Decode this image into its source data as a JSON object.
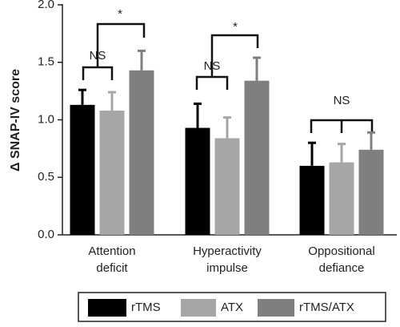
{
  "chart_data": {
    "type": "bar",
    "y_label": "Δ SNAP-IV score",
    "categories": [
      [
        "Attention",
        "deficit"
      ],
      [
        "Hyperactivity",
        "impulse"
      ],
      [
        "Oppositional",
        "defiance"
      ]
    ],
    "series": [
      {
        "name": "rTMS",
        "color": "#000000",
        "values": [
          1.13,
          0.93,
          0.6
        ],
        "errors": [
          0.13,
          0.21,
          0.2
        ]
      },
      {
        "name": "ATX",
        "color": "#a6a6a6",
        "values": [
          1.08,
          0.84,
          0.63
        ],
        "errors": [
          0.16,
          0.18,
          0.16
        ]
      },
      {
        "name": "rTMS/ATX",
        "color": "#7f7f7f",
        "values": [
          1.43,
          1.34,
          0.74
        ],
        "errors": [
          0.17,
          0.2,
          0.15
        ]
      }
    ],
    "ylim": [
      0,
      2.0
    ],
    "yticks": [
      {
        "value": 0,
        "label": "0.0"
      },
      {
        "value": 0.5,
        "label": "0.5"
      },
      {
        "value": 1.0,
        "label": "1.0"
      },
      {
        "value": 1.5,
        "label": "1.5"
      },
      {
        "value": 2.0,
        "label": "2.0"
      }
    ],
    "annotations": [
      "NS",
      "*",
      "NS",
      "*",
      "NS"
    ]
  }
}
